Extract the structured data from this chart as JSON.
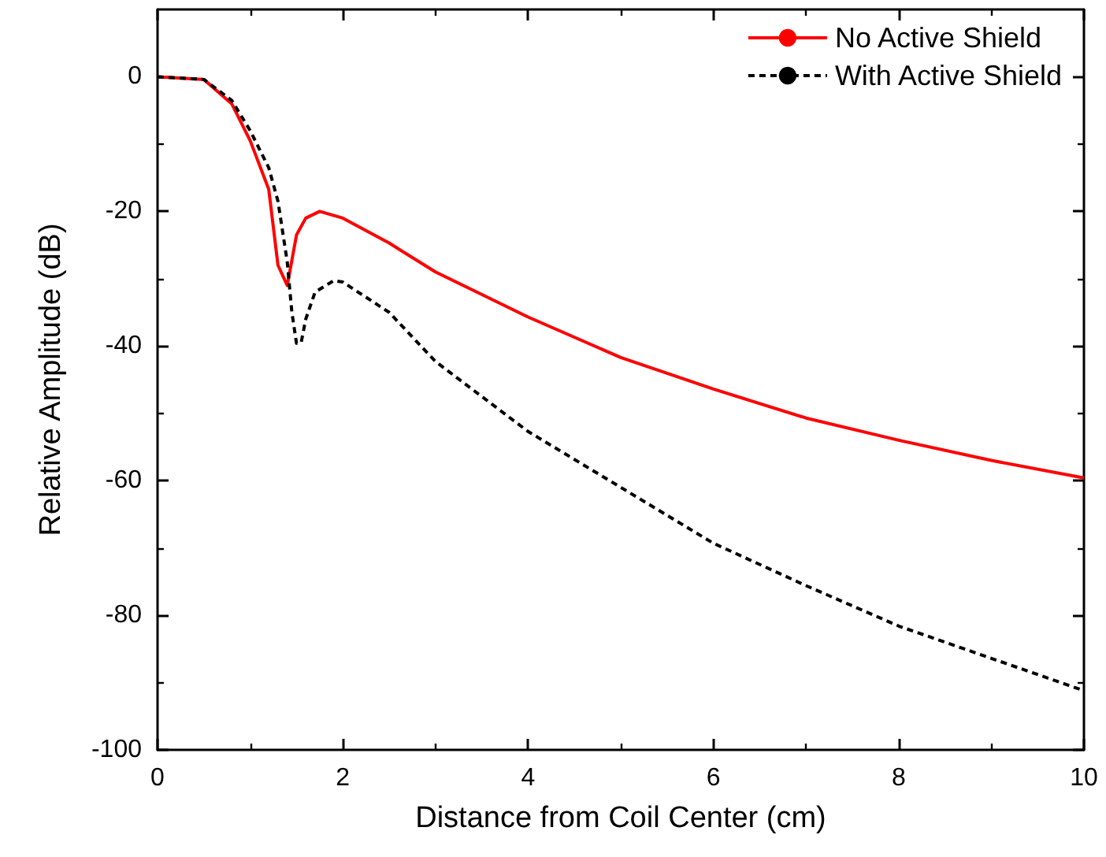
{
  "chart_data": {
    "type": "line",
    "xlabel": "Distance from Coil Center (cm)",
    "ylabel": "Relative Amplitude (dB)",
    "xlim": [
      0,
      10
    ],
    "xticks": [
      0,
      2,
      4,
      6,
      8,
      10
    ],
    "ylim": [
      -100,
      10
    ],
    "yticks": [
      -100,
      -80,
      -60,
      -40,
      -20,
      0
    ],
    "grid": false,
    "legend": "top right",
    "marker": "none",
    "series": [
      {
        "name": "No Active Shield",
        "color": "#ff0000",
        "line_style": "solid",
        "x": [
          0,
          0.5,
          0.8,
          1.0,
          1.2,
          1.3,
          1.4,
          1.5,
          1.6,
          1.75,
          2.0,
          2.5,
          3,
          4,
          5,
          6,
          7,
          8,
          9,
          10
        ],
        "values": [
          0,
          -0.4,
          -4,
          -9.5,
          -16.7,
          -28,
          -31,
          -23.5,
          -21,
          -20,
          -21,
          -24.7,
          -29,
          -35.7,
          -41.7,
          -46.4,
          -50.7,
          -54,
          -57,
          -59.6
        ]
      },
      {
        "name": "With Active Shield",
        "color": "#000000",
        "line_style": "dashed",
        "x": [
          0,
          0.5,
          0.8,
          1.0,
          1.2,
          1.3,
          1.4,
          1.45,
          1.5,
          1.55,
          1.6,
          1.7,
          1.9,
          2.0,
          2.5,
          3,
          4,
          5,
          6,
          7,
          8,
          9,
          10
        ],
        "values": [
          0,
          -0.4,
          -3.5,
          -8,
          -13.5,
          -18.5,
          -27.5,
          -35,
          -39.6,
          -39.5,
          -36,
          -32,
          -30.3,
          -30.5,
          -35,
          -42.3,
          -52.7,
          -61,
          -69.3,
          -75.6,
          -81.6,
          -86.4,
          -91.2
        ]
      }
    ]
  }
}
